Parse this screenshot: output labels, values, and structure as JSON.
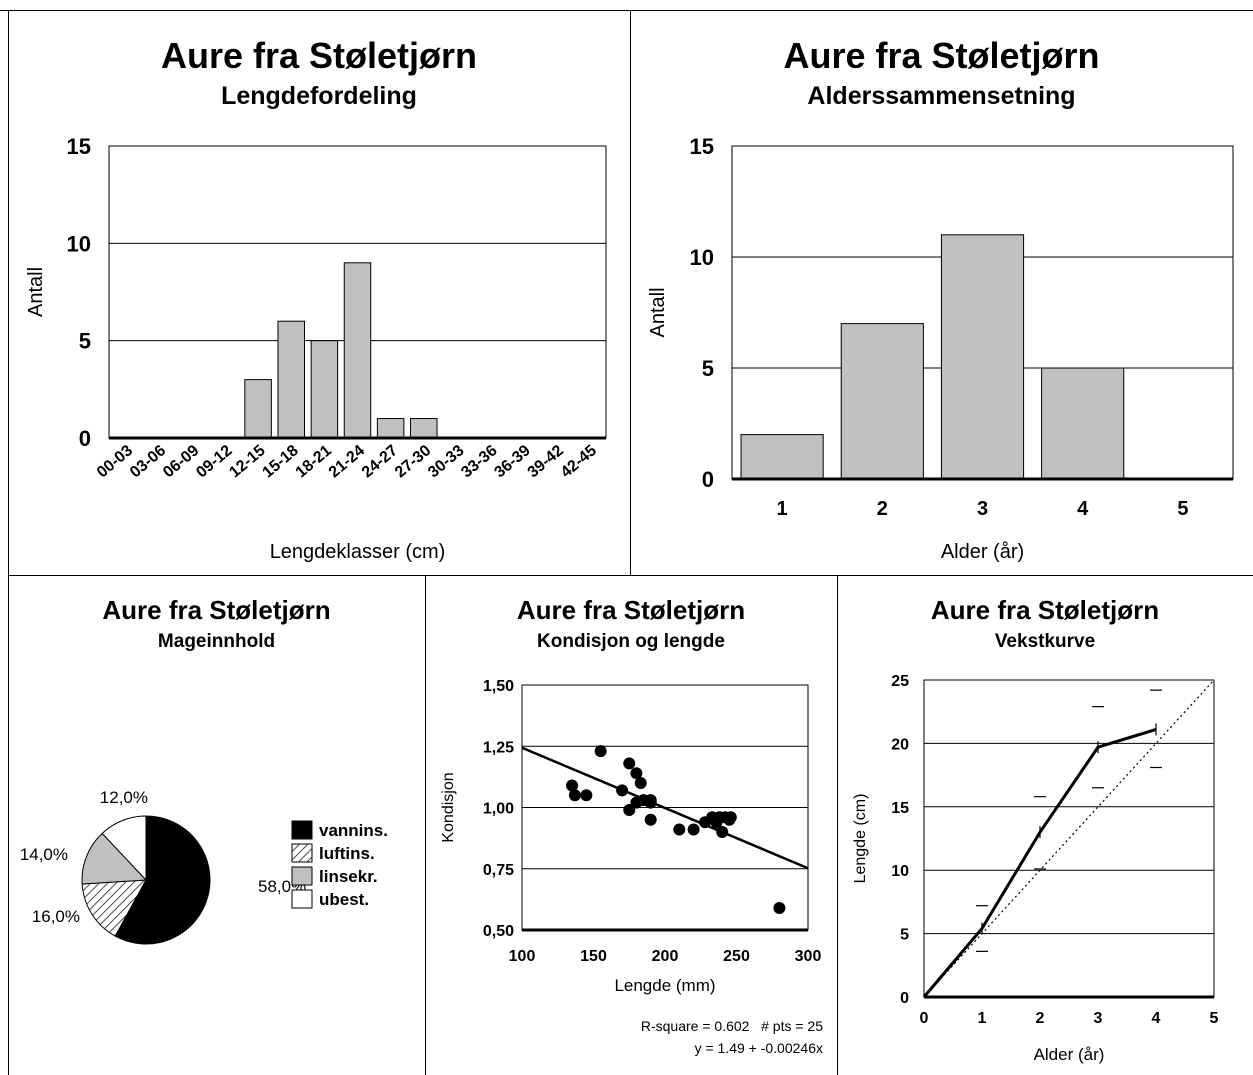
{
  "charts": {
    "length": {
      "title": "Aure fra Støletjørn",
      "subtitle": "Lengdefordeling",
      "ylabel": "Antall",
      "xlabel": "Lengdeklasser (cm)"
    },
    "age": {
      "title": "Aure fra Støletjørn",
      "subtitle": "Alderssammensetning",
      "ylabel": "Antall",
      "xlabel": "Alder (år)"
    },
    "stomach": {
      "title": "Aure fra Støletjørn",
      "subtitle": "Mageinnhold"
    },
    "condition": {
      "title": "Aure fra Støletjørn",
      "subtitle": "Kondisjon og lengde",
      "ylabel": "Kondisjon",
      "xlabel": "Lengde (mm)",
      "stats1": "R-square = 0.602   # pts = 25",
      "stats2": "y = 1.49 + -0.00246x"
    },
    "growth": {
      "title": "Aure fra Støletjørn",
      "subtitle": "Vekstkurve",
      "ylabel": "Lengde (cm)",
      "xlabel": "Alder (år)"
    }
  },
  "chart_data": [
    {
      "type": "bar",
      "title": "Aure fra Støletjørn",
      "subtitle": "Lengdefordeling",
      "xlabel": "Lengdeklasser (cm)",
      "ylabel": "Antall",
      "categories": [
        "00-03",
        "03-06",
        "06-09",
        "09-12",
        "12-15",
        "15-18",
        "18-21",
        "21-24",
        "24-27",
        "27-30",
        "30-33",
        "33-36",
        "36-39",
        "39-42",
        "42-45"
      ],
      "values": [
        0,
        0,
        0,
        0,
        3,
        6,
        5,
        9,
        1,
        1,
        0,
        0,
        0,
        0,
        0
      ],
      "ylim": [
        0,
        15
      ],
      "yticks": [
        0,
        5,
        10,
        15
      ],
      "grid": true,
      "bar_color": "#c0c0c0"
    },
    {
      "type": "bar",
      "title": "Aure fra Støletjørn",
      "subtitle": "Alderssammensetning",
      "xlabel": "Alder (år)",
      "ylabel": "Antall",
      "categories": [
        "1",
        "2",
        "3",
        "4",
        "5"
      ],
      "values": [
        2,
        7,
        11,
        5,
        0
      ],
      "ylim": [
        0,
        15
      ],
      "yticks": [
        0,
        5,
        10,
        15
      ],
      "grid": true,
      "bar_color": "#c0c0c0"
    },
    {
      "type": "pie",
      "title": "Aure fra Støletjørn",
      "subtitle": "Mageinnhold",
      "labels": [
        "vannins.",
        "luftins.",
        "linsekr.",
        "ubest."
      ],
      "values": [
        58.0,
        16.0,
        14.0,
        12.0
      ],
      "value_labels": [
        "58,0%",
        "16,0%",
        "14,0%",
        "12,0%"
      ],
      "colors": [
        "#000000",
        "hatched",
        "#c0c0c0",
        "#ffffff"
      ],
      "legend": "right"
    },
    {
      "type": "scatter",
      "title": "Aure fra Støletjørn",
      "subtitle": "Kondisjon og lengde",
      "xlabel": "Lengde (mm)",
      "ylabel": "Kondisjon",
      "xlim": [
        100,
        300
      ],
      "ylim": [
        0.5,
        1.5
      ],
      "xticks": [
        100,
        150,
        200,
        250,
        300
      ],
      "yticks": [
        0.5,
        0.75,
        1.0,
        1.25,
        1.5
      ],
      "ytick_labels": [
        "0,50",
        "0,75",
        "1,00",
        "1,25",
        "1,50"
      ],
      "x": [
        135,
        137,
        145,
        155,
        170,
        175,
        175,
        180,
        180,
        183,
        185,
        190,
        190,
        190,
        210,
        220,
        228,
        233,
        236,
        238,
        240,
        242,
        245,
        246,
        280
      ],
      "y": [
        1.09,
        1.05,
        1.05,
        1.23,
        1.07,
        1.18,
        0.99,
        1.14,
        1.02,
        1.1,
        1.03,
        1.02,
        1.03,
        0.95,
        0.91,
        0.91,
        0.94,
        0.96,
        0.94,
        0.96,
        0.9,
        0.96,
        0.95,
        0.96,
        0.59
      ],
      "fit": {
        "intercept": 1.49,
        "slope": -0.00246
      },
      "r_square": 0.602,
      "n_points": 25,
      "grid": true
    },
    {
      "type": "line",
      "title": "Aure fra Støletjørn",
      "subtitle": "Vekstkurve",
      "xlabel": "Alder (år)",
      "ylabel": "Lengde (cm)",
      "xlim": [
        0,
        5
      ],
      "ylim": [
        0,
        25
      ],
      "xticks": [
        0,
        1,
        2,
        3,
        4,
        5
      ],
      "yticks": [
        0,
        5,
        10,
        15,
        20,
        25
      ],
      "series": [
        {
          "x": [
            0,
            1,
            2,
            3,
            4
          ],
          "y": [
            0,
            5.4,
            13,
            19.7,
            21.1
          ],
          "style": "solid"
        },
        {
          "x": [
            0,
            5
          ],
          "y": [
            0,
            25
          ],
          "style": "dotted"
        }
      ],
      "range_markers": [
        {
          "x": 1,
          "low": 3.6,
          "high": 7.2
        },
        {
          "x": 2,
          "low": 10.1,
          "high": 15.8
        },
        {
          "x": 3,
          "low": 16.5,
          "high": 22.9
        },
        {
          "x": 4,
          "low": 18.1,
          "high": 24.2
        }
      ],
      "grid": true
    }
  ]
}
